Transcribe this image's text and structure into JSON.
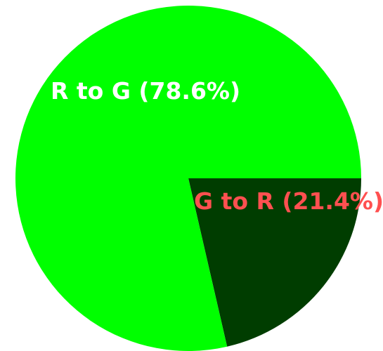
{
  "chart_data": {
    "type": "pie",
    "title": "",
    "slices": [
      {
        "label": "R to G (78.6%)",
        "value": 78.6,
        "color": "#00ff00",
        "label_color": "#ffffff"
      },
      {
        "label": "G to R (21.4%)",
        "value": 21.4,
        "color": "#003d00",
        "label_color": "#ff5050"
      }
    ],
    "legend": "none"
  }
}
